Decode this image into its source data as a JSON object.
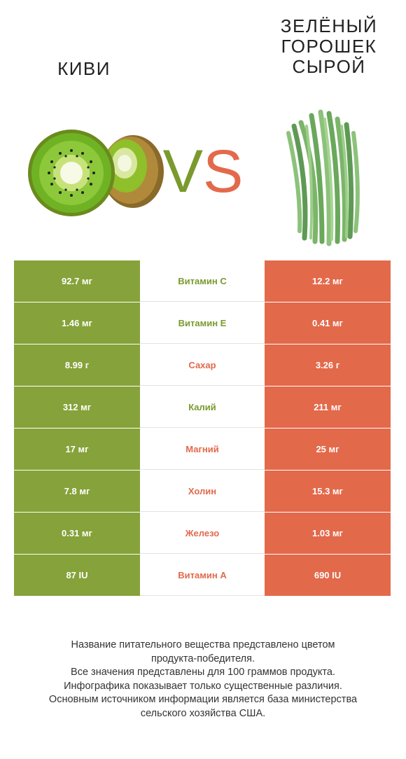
{
  "header": {
    "left_title": "Киви",
    "right_title": [
      "Зелёный",
      "горошек",
      "сырой"
    ],
    "vs_v": "V",
    "vs_s": "S"
  },
  "colors": {
    "winner_left": "#86a23a",
    "winner_right": "#e3694b"
  },
  "icons": {
    "left": "kiwi-image",
    "right": "green-beans-image"
  },
  "rows": [
    {
      "left": "92.7 мг",
      "label": "Витамин C",
      "right": "12.2 мг",
      "winner": "left"
    },
    {
      "left": "1.46 мг",
      "label": "Витамин E",
      "right": "0.41 мг",
      "winner": "left"
    },
    {
      "left": "8.99 г",
      "label": "Сахар",
      "right": "3.26 г",
      "winner": "right"
    },
    {
      "left": "312 мг",
      "label": "Калий",
      "right": "211 мг",
      "winner": "left"
    },
    {
      "left": "17 мг",
      "label": "Магний",
      "right": "25 мг",
      "winner": "right"
    },
    {
      "left": "7.8 мг",
      "label": "Холин",
      "right": "15.3 мг",
      "winner": "right"
    },
    {
      "left": "0.31 мг",
      "label": "Железо",
      "right": "1.03 мг",
      "winner": "right"
    },
    {
      "left": "87 IU",
      "label": "Витамин A",
      "right": "690 IU",
      "winner": "right"
    }
  ],
  "footer": [
    "Название питательного вещества представлено цветом",
    "продукта-победителя.",
    "Все значения представлены для 100 граммов продукта.",
    "Инфографика показывает только существенные различия.",
    "Основным источником информации является база министерства",
    "сельского хозяйства США."
  ]
}
